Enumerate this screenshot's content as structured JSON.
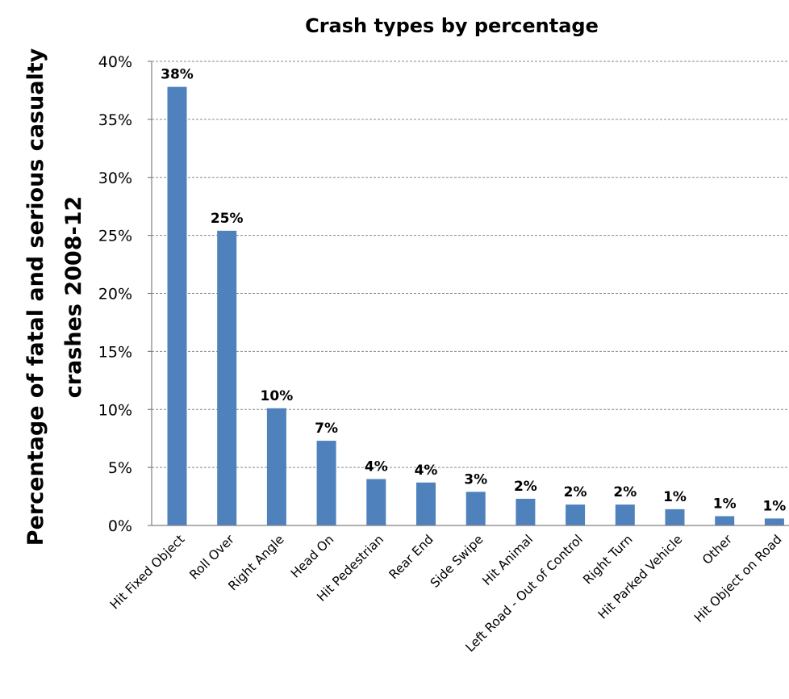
{
  "chart_data": {
    "type": "bar",
    "title": "Crash types by percentage",
    "ylabel_lines": [
      "Percentage of fatal  and serious casualty",
      "crashes  2008-12"
    ],
    "xlabel": "",
    "ylim": [
      0,
      40
    ],
    "yticks": [
      "0%",
      "5%",
      "10%",
      "15%",
      "20%",
      "25%",
      "30%",
      "35%",
      "40%"
    ],
    "grid": true,
    "legend": "none",
    "bar_color": "#4f81bd",
    "categories": [
      "Hit Fixed Object",
      "Roll Over",
      "Right Angle",
      "Head On",
      "Hit Pedestrian",
      "Rear End",
      "Side Swipe",
      "Hit Animal",
      "Left Road - Out of Control",
      "Right Turn",
      "Hit Parked Vehicle",
      "Other",
      "Hit Object on Road"
    ],
    "values": [
      37.8,
      25.4,
      10.1,
      7.3,
      4.0,
      3.7,
      2.9,
      2.3,
      1.8,
      1.8,
      1.4,
      0.8,
      0.6
    ],
    "data_labels": [
      "38%",
      "25%",
      "10%",
      "7%",
      "4%",
      "4%",
      "3%",
      "2%",
      "2%",
      "2%",
      "1%",
      "1%",
      "1%"
    ]
  }
}
